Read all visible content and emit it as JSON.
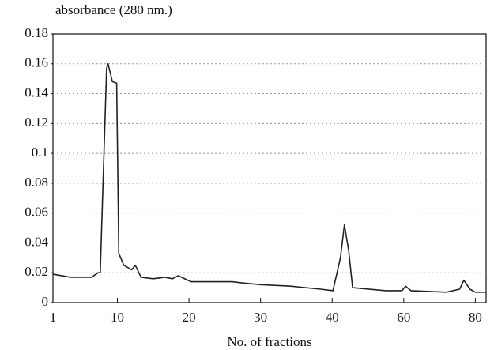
{
  "chart_data": {
    "type": "line",
    "y_label": "absorbance (280 nm.)",
    "x_label": "No. of fractions",
    "x": [
      1,
      3.5,
      6.4,
      7.3,
      7.6,
      8.5,
      8.7,
      9.3,
      9.9,
      10.2,
      10.9,
      12,
      12.5,
      13.3,
      15,
      16.6,
      17.7,
      18.5,
      20.3,
      23.9,
      26,
      27.8,
      30,
      34.2,
      38.4,
      40.2,
      42.3,
      43.4,
      44.6,
      45.7,
      55,
      59.5,
      60.5,
      62,
      71.9,
      75.6,
      76.8,
      78.5,
      80,
      83
    ],
    "series": [
      {
        "name": "absorbance",
        "color": "#222222",
        "values": [
          0.019,
          0.017,
          0.017,
          0.02,
          0.02,
          0.157,
          0.16,
          0.148,
          0.147,
          0.033,
          0.025,
          0.022,
          0.025,
          0.017,
          0.016,
          0.017,
          0.016,
          0.018,
          0.014,
          0.014,
          0.014,
          0.013,
          0.012,
          0.011,
          0.009,
          0.008,
          0.03,
          0.052,
          0.035,
          0.01,
          0.008,
          0.008,
          0.011,
          0.008,
          0.007,
          0.009,
          0.015,
          0.009,
          0.007,
          0.007
        ]
      }
    ],
    "xlim": [
      1,
      83
    ],
    "xticks": [
      1,
      10,
      20,
      30,
      40,
      60,
      80
    ],
    "ylim": [
      0,
      0.18
    ],
    "yticks": [
      0,
      0.02,
      0.04,
      0.06,
      0.08,
      0.1,
      0.12,
      0.14,
      0.16,
      0.18
    ],
    "grid": true
  }
}
